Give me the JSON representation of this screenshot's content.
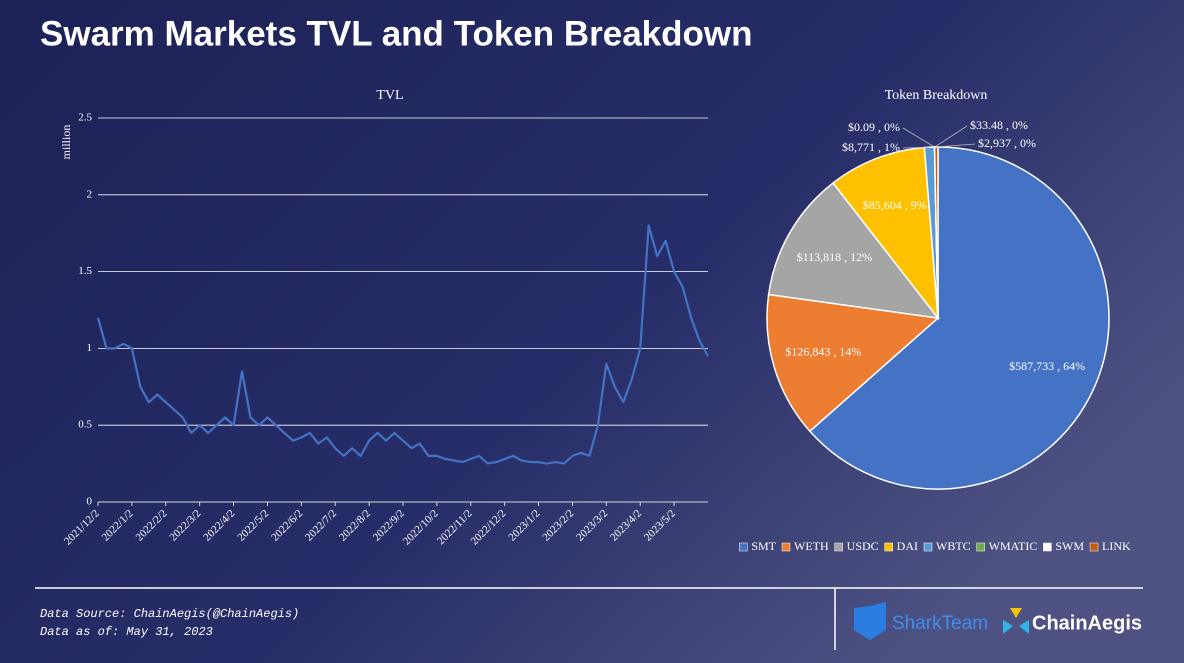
{
  "header": {
    "title": "Swarm Markets TVL and Token Breakdown"
  },
  "chart_data": [
    {
      "type": "line",
      "title": "TVL",
      "y_label": "million",
      "color": "#4472c4",
      "grid": true,
      "ylim": [
        0,
        2.5
      ],
      "yticks": [
        0,
        0.5,
        1,
        1.5,
        2,
        2.5
      ],
      "categories": [
        "2021/12/2",
        null,
        null,
        null,
        "2022/1/2",
        null,
        null,
        null,
        "2022/2/2",
        null,
        null,
        null,
        "2022/3/2",
        null,
        null,
        null,
        "2022/4/2",
        null,
        null,
        null,
        "2022/5/2",
        null,
        null,
        null,
        "2022/6/2",
        null,
        null,
        null,
        "2022/7/2",
        null,
        null,
        null,
        "2022/8/2",
        null,
        null,
        null,
        "2022/9/2",
        null,
        null,
        null,
        "2022/10/2",
        null,
        null,
        null,
        "2022/11/2",
        null,
        null,
        null,
        "2022/12/2",
        null,
        null,
        null,
        "2023/1/2",
        null,
        null,
        null,
        "2023/2/2",
        null,
        null,
        null,
        "2023/3/2",
        null,
        null,
        null,
        "2023/4/2",
        null,
        null,
        null,
        "2023/5/2",
        null,
        null,
        null,
        null
      ],
      "values": [
        1.2,
        1.0,
        1.0,
        1.03,
        1.0,
        0.75,
        0.65,
        0.7,
        0.65,
        0.6,
        0.55,
        0.45,
        0.5,
        0.45,
        0.5,
        0.55,
        0.5,
        0.85,
        0.55,
        0.5,
        0.55,
        0.5,
        0.45,
        0.4,
        0.42,
        0.45,
        0.38,
        0.42,
        0.35,
        0.3,
        0.35,
        0.3,
        0.4,
        0.45,
        0.4,
        0.45,
        0.4,
        0.35,
        0.38,
        0.3,
        0.3,
        0.28,
        0.27,
        0.26,
        0.28,
        0.3,
        0.25,
        0.26,
        0.28,
        0.3,
        0.27,
        0.26,
        0.26,
        0.25,
        0.26,
        0.25,
        0.3,
        0.32,
        0.3,
        0.5,
        0.9,
        0.75,
        0.65,
        0.8,
        1.0,
        1.8,
        1.6,
        1.7,
        1.5,
        1.4,
        1.2,
        1.05,
        0.95
      ]
    },
    {
      "type": "pie",
      "title": "Token Breakdown",
      "categories": [
        "SMT",
        "WETH",
        "USDC",
        "DAI",
        "WBTC",
        "WMATIC",
        "SWM",
        "LINK"
      ],
      "values": [
        587733,
        126843,
        113818,
        85604,
        8771,
        0.09,
        33.48,
        2937
      ],
      "value_labels": [
        "$587,733 , 64%",
        "$126,843 , 14%",
        "$113,818 , 12%",
        "$85,604 , 9%",
        "$8,771 , 1%",
        "$0.09 , 0%",
        "$33.48 , 0%",
        "$2,937 , 0%"
      ],
      "colors": [
        "#4472c4",
        "#ed7d31",
        "#a5a5a5",
        "#ffc000",
        "#5b9bd5",
        "#70ad47",
        "#ffffff",
        "#c55a11"
      ]
    }
  ],
  "footer": {
    "source": "Data Source: ChainAegis(@ChainAegis)",
    "date": "Data as of: May 31, 2023",
    "logo1": "SharkTeam",
    "logo2": "ChainAegis"
  }
}
